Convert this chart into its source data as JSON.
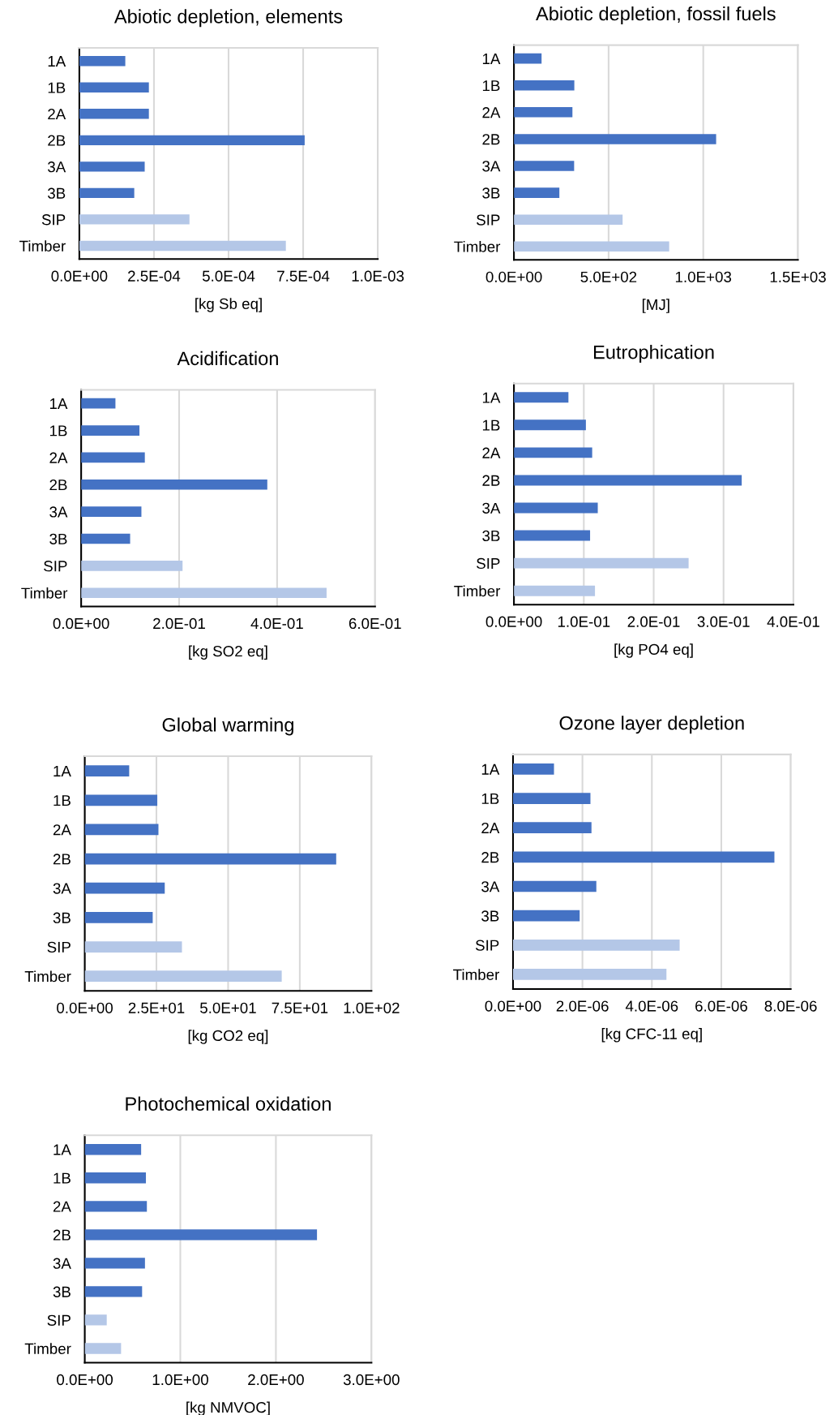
{
  "chart_data": [
    {
      "type": "bar",
      "orientation": "horizontal",
      "title": "Abiotic depletion, elements",
      "xlabel": "[kg Sb eq]",
      "categories": [
        "1A",
        "1B",
        "2A",
        "2B",
        "3A",
        "3B",
        "SIP",
        "Timber"
      ],
      "values": [
        0.000154,
        0.000233,
        0.000233,
        0.000755,
        0.000219,
        0.000184,
        0.000369,
        0.000692
      ],
      "colors": [
        "#4472c4",
        "#4472c4",
        "#4472c4",
        "#4472c4",
        "#4472c4",
        "#4472c4",
        "#b4c7e7",
        "#b4c7e7"
      ],
      "xlim": [
        0,
        0.001
      ],
      "xticks": [
        {
          "value": 0,
          "label": "0.0E+00"
        },
        {
          "value": 0.00025,
          "label": "2.5E-04"
        },
        {
          "value": 0.0005,
          "label": "5.0E-04"
        },
        {
          "value": 0.00075,
          "label": "7.5E-04"
        },
        {
          "value": 0.001,
          "label": "1.0E-03"
        }
      ],
      "grid": "x"
    },
    {
      "type": "bar",
      "orientation": "horizontal",
      "title": "Abiotic depletion, fossil fuels",
      "xlabel": "[MJ]",
      "categories": [
        "1A",
        "1B",
        "2A",
        "2B",
        "3A",
        "3B",
        "SIP",
        "Timber"
      ],
      "values": [
        146,
        319,
        309,
        1068,
        318,
        240,
        574,
        820
      ],
      "colors": [
        "#4472c4",
        "#4472c4",
        "#4472c4",
        "#4472c4",
        "#4472c4",
        "#4472c4",
        "#b4c7e7",
        "#b4c7e7"
      ],
      "xlim": [
        0,
        1500
      ],
      "xticks": [
        {
          "value": 0,
          "label": "0.0E+00"
        },
        {
          "value": 500,
          "label": "5.0E+02"
        },
        {
          "value": 1000,
          "label": "1.0E+03"
        },
        {
          "value": 1500,
          "label": "1.5E+03"
        }
      ],
      "grid": "x"
    },
    {
      "type": "bar",
      "orientation": "horizontal",
      "title": "Acidification",
      "xlabel": "[kg SO2 eq]",
      "categories": [
        "1A",
        "1B",
        "2A",
        "2B",
        "3A",
        "3B",
        "SIP",
        "Timber"
      ],
      "values": [
        0.07,
        0.119,
        0.13,
        0.38,
        0.123,
        0.1,
        0.207,
        0.501
      ],
      "colors": [
        "#4472c4",
        "#4472c4",
        "#4472c4",
        "#4472c4",
        "#4472c4",
        "#4472c4",
        "#b4c7e7",
        "#b4c7e7"
      ],
      "xlim": [
        0,
        0.6
      ],
      "xticks": [
        {
          "value": 0,
          "label": "0.0E+00"
        },
        {
          "value": 0.2,
          "label": "2.0E-01"
        },
        {
          "value": 0.4,
          "label": "4.0E-01"
        },
        {
          "value": 0.6,
          "label": "6.0E-01"
        }
      ],
      "grid": "x"
    },
    {
      "type": "bar",
      "orientation": "horizontal",
      "title": "Eutrophication",
      "xlabel": "[kg PO4 eq]",
      "categories": [
        "1A",
        "1B",
        "2A",
        "2B",
        "3A",
        "3B",
        "SIP",
        "Timber"
      ],
      "values": [
        0.078,
        0.103,
        0.112,
        0.326,
        0.12,
        0.109,
        0.25,
        0.116
      ],
      "colors": [
        "#4472c4",
        "#4472c4",
        "#4472c4",
        "#4472c4",
        "#4472c4",
        "#4472c4",
        "#b4c7e7",
        "#b4c7e7"
      ],
      "xlim": [
        0,
        0.4
      ],
      "xticks": [
        {
          "value": 0,
          "label": "0.0E+00"
        },
        {
          "value": 0.1,
          "label": "1.0E-01"
        },
        {
          "value": 0.2,
          "label": "2.0E-01"
        },
        {
          "value": 0.3,
          "label": "3.0E-01"
        },
        {
          "value": 0.4,
          "label": "4.0E-01"
        }
      ],
      "grid": "x"
    },
    {
      "type": "bar",
      "orientation": "horizontal",
      "title": "Global warming",
      "xlabel": "[kg CO2 eq]",
      "categories": [
        "1A",
        "1B",
        "2A",
        "2B",
        "3A",
        "3B",
        "SIP",
        "Timber"
      ],
      "values": [
        15.5,
        25.3,
        25.7,
        87.7,
        27.9,
        23.7,
        33.9,
        68.7
      ],
      "colors": [
        "#4472c4",
        "#4472c4",
        "#4472c4",
        "#4472c4",
        "#4472c4",
        "#4472c4",
        "#b4c7e7",
        "#b4c7e7"
      ],
      "xlim": [
        0,
        100
      ],
      "xticks": [
        {
          "value": 0,
          "label": "0.0E+00"
        },
        {
          "value": 25,
          "label": "2.5E+01"
        },
        {
          "value": 50,
          "label": "5.0E+01"
        },
        {
          "value": 75,
          "label": "7.5E+01"
        },
        {
          "value": 100,
          "label": "1.0E+02"
        }
      ],
      "grid": "x"
    },
    {
      "type": "bar",
      "orientation": "horizontal",
      "title": "Ozone layer depletion",
      "xlabel": "[kg CFC-11 eq]",
      "categories": [
        "1A",
        "1B",
        "2A",
        "2B",
        "3A",
        "3B",
        "SIP",
        "Timber"
      ],
      "values": [
        1.18e-06,
        2.23e-06,
        2.26e-06,
        7.53e-06,
        2.4e-06,
        1.92e-06,
        4.8e-06,
        4.42e-06
      ],
      "colors": [
        "#4472c4",
        "#4472c4",
        "#4472c4",
        "#4472c4",
        "#4472c4",
        "#4472c4",
        "#b4c7e7",
        "#b4c7e7"
      ],
      "xlim": [
        0,
        8e-06
      ],
      "xticks": [
        {
          "value": 0,
          "label": "0.0E+00"
        },
        {
          "value": 2e-06,
          "label": "2.0E-06"
        },
        {
          "value": 4e-06,
          "label": "4.0E-06"
        },
        {
          "value": 6e-06,
          "label": "6.0E-06"
        },
        {
          "value": 8e-06,
          "label": "8.0E-06"
        }
      ],
      "grid": "x"
    },
    {
      "type": "bar",
      "orientation": "horizontal",
      "title": "Photochemical oxidation",
      "xlabel": "[kg NMVOC]",
      "categories": [
        "1A",
        "1B",
        "2A",
        "2B",
        "3A",
        "3B",
        "SIP",
        "Timber"
      ],
      "values": [
        0.59,
        0.64,
        0.65,
        2.43,
        0.63,
        0.6,
        0.23,
        0.38
      ],
      "colors": [
        "#4472c4",
        "#4472c4",
        "#4472c4",
        "#4472c4",
        "#4472c4",
        "#4472c4",
        "#b4c7e7",
        "#b4c7e7"
      ],
      "xlim": [
        0,
        3
      ],
      "xticks": [
        {
          "value": 0,
          "label": "0.0E+00"
        },
        {
          "value": 1,
          "label": "1.0E+00"
        },
        {
          "value": 2,
          "label": "2.0E+00"
        },
        {
          "value": 3,
          "label": "3.0E+00"
        }
      ],
      "grid": "x"
    }
  ]
}
